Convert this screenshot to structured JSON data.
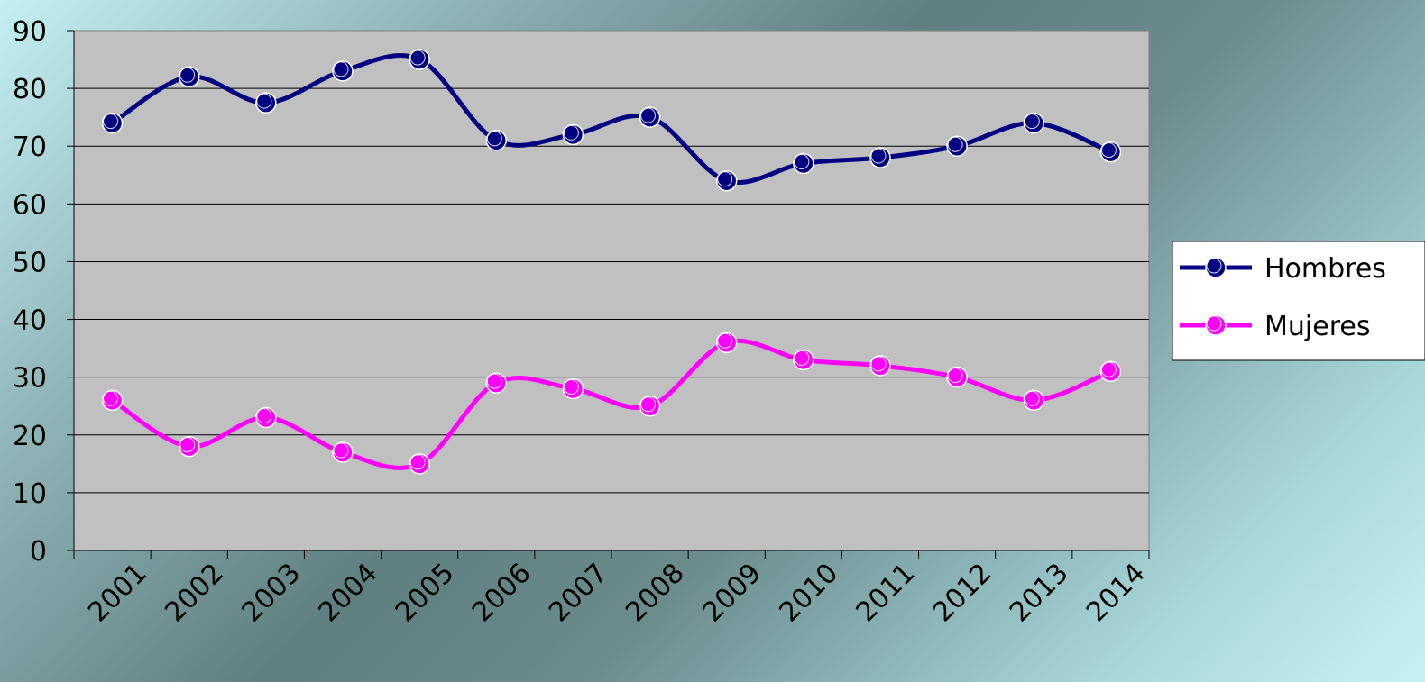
{
  "chart_data": {
    "type": "line",
    "categories": [
      "2001",
      "2002",
      "2003",
      "2004",
      "2005",
      "2006",
      "2007",
      "2008",
      "2009",
      "2010",
      "2011",
      "2012",
      "2013",
      "2014"
    ],
    "series": [
      {
        "name": "Hombres",
        "color": "#000080",
        "values": [
          74,
          82,
          77.5,
          83,
          85,
          71,
          72,
          75,
          64,
          67,
          68,
          70,
          74,
          69
        ]
      },
      {
        "name": "Mujeres",
        "color": "#ff00ff",
        "values": [
          26,
          18,
          23,
          17,
          15,
          29,
          28,
          25,
          36,
          33,
          32,
          30,
          26,
          31
        ]
      }
    ],
    "ylim": [
      0,
      90
    ],
    "yticks": [
      "0",
      "10",
      "20",
      "30",
      "40",
      "50",
      "60",
      "70",
      "80",
      "90"
    ],
    "grid": true,
    "plot_background": "#c0c0c0",
    "legend_position": "right"
  }
}
